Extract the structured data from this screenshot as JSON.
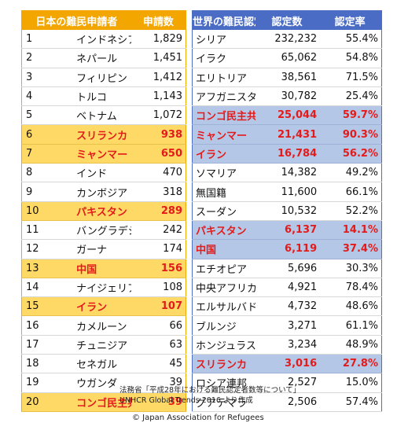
{
  "left_table": {
    "header_name": "日本の難民申請者",
    "header_count": "申請数",
    "rows": [
      {
        "rank": "1",
        "name": "インドネシア",
        "count": "1,829",
        "highlight": false
      },
      {
        "rank": "2",
        "name": "ネパール",
        "count": "1,451",
        "highlight": false
      },
      {
        "rank": "3",
        "name": "フィリピン",
        "count": "1,412",
        "highlight": false
      },
      {
        "rank": "4",
        "name": "トルコ",
        "count": "1,143",
        "highlight": false
      },
      {
        "rank": "5",
        "name": "ベトナム",
        "count": "1,072",
        "highlight": false
      },
      {
        "rank": "6",
        "name": "スリランカ",
        "count": "938",
        "highlight": true
      },
      {
        "rank": "7",
        "name": "ミャンマー",
        "count": "650",
        "highlight": true
      },
      {
        "rank": "8",
        "name": "インド",
        "count": "470",
        "highlight": false
      },
      {
        "rank": "9",
        "name": "カンボジア",
        "count": "318",
        "highlight": false
      },
      {
        "rank": "10",
        "name": "パキスタン",
        "count": "289",
        "highlight": true
      },
      {
        "rank": "11",
        "name": "バングラデシュ",
        "count": "242",
        "highlight": false
      },
      {
        "rank": "12",
        "name": "ガーナ",
        "count": "174",
        "highlight": false
      },
      {
        "rank": "13",
        "name": "中国",
        "count": "156",
        "highlight": true
      },
      {
        "rank": "14",
        "name": "ナイジェリア",
        "count": "108",
        "highlight": false
      },
      {
        "rank": "15",
        "name": "イラン",
        "count": "107",
        "highlight": true
      },
      {
        "rank": "16",
        "name": "カメルーン",
        "count": "66",
        "highlight": false
      },
      {
        "rank": "17",
        "name": "チュニジア",
        "count": "63",
        "highlight": false
      },
      {
        "rank": "18",
        "name": "セネガル",
        "count": "45",
        "highlight": false
      },
      {
        "rank": "19",
        "name": "ウガンダ",
        "count": "39",
        "highlight": false
      },
      {
        "rank": "20",
        "name": "コンゴ民主共和国",
        "count": "39",
        "highlight": true
      }
    ]
  },
  "right_table": {
    "header_name": "世界の難民認定者",
    "header_count": "認定数",
    "header_rate": "認定率",
    "rows": [
      {
        "name": "シリア",
        "count": "232,232",
        "rate": "55.4%",
        "highlight": false
      },
      {
        "name": "イラク",
        "count": "65,062",
        "rate": "54.8%",
        "highlight": false
      },
      {
        "name": "エリトリア",
        "count": "38,561",
        "rate": "71.5%",
        "highlight": false
      },
      {
        "name": "アフガニスタン",
        "count": "30,782",
        "rate": "25.4%",
        "highlight": false
      },
      {
        "name": "コンゴ民主共和国",
        "count": "25,044",
        "rate": "59.7%",
        "highlight": true
      },
      {
        "name": "ミャンマー",
        "count": "21,431",
        "rate": "90.3%",
        "highlight": true
      },
      {
        "name": "イラン",
        "count": "16,784",
        "rate": "56.2%",
        "highlight": true
      },
      {
        "name": "ソマリア",
        "count": "14,382",
        "rate": "49.2%",
        "highlight": false
      },
      {
        "name": "無国籍",
        "count": "11,600",
        "rate": "66.1%",
        "highlight": false
      },
      {
        "name": "スーダン",
        "count": "10,532",
        "rate": "52.2%",
        "highlight": false
      },
      {
        "name": "パキスタン",
        "count": "6,137",
        "rate": "14.1%",
        "highlight": true
      },
      {
        "name": "中国",
        "count": "6,119",
        "rate": "37.4%",
        "highlight": true
      },
      {
        "name": "エチオピア",
        "count": "5,696",
        "rate": "30.3%",
        "highlight": false
      },
      {
        "name": "中央アフリカ",
        "count": "4,921",
        "rate": "78.4%",
        "highlight": false
      },
      {
        "name": "エルサルバドル",
        "count": "4,732",
        "rate": "48.6%",
        "highlight": false
      },
      {
        "name": "ブルンジ",
        "count": "3,271",
        "rate": "61.1%",
        "highlight": false
      },
      {
        "name": "ホンジュラス",
        "count": "3,234",
        "rate": "48.9%",
        "highlight": false
      },
      {
        "name": "スリランカ",
        "count": "3,016",
        "rate": "27.8%",
        "highlight": true
      },
      {
        "name": "ロシア連邦",
        "count": "2,527",
        "rate": "15.0%",
        "highlight": false
      },
      {
        "name": "グアテマラ",
        "count": "2,506",
        "rate": "57.4%",
        "highlight": false
      }
    ]
  },
  "notes": {
    "source_1": "法務省「平成28年における難民認定者数等について」",
    "source_2": "UNHCR Global Trends 2016 より作成",
    "copyright": "© Japan Association for Refugees"
  },
  "colors": {
    "left_header": "#f3a500",
    "left_highlight": "#ffd966",
    "right_header": "#4a6cc5",
    "right_highlight": "#b4c7e7",
    "highlight_text": "#e31b1b"
  }
}
